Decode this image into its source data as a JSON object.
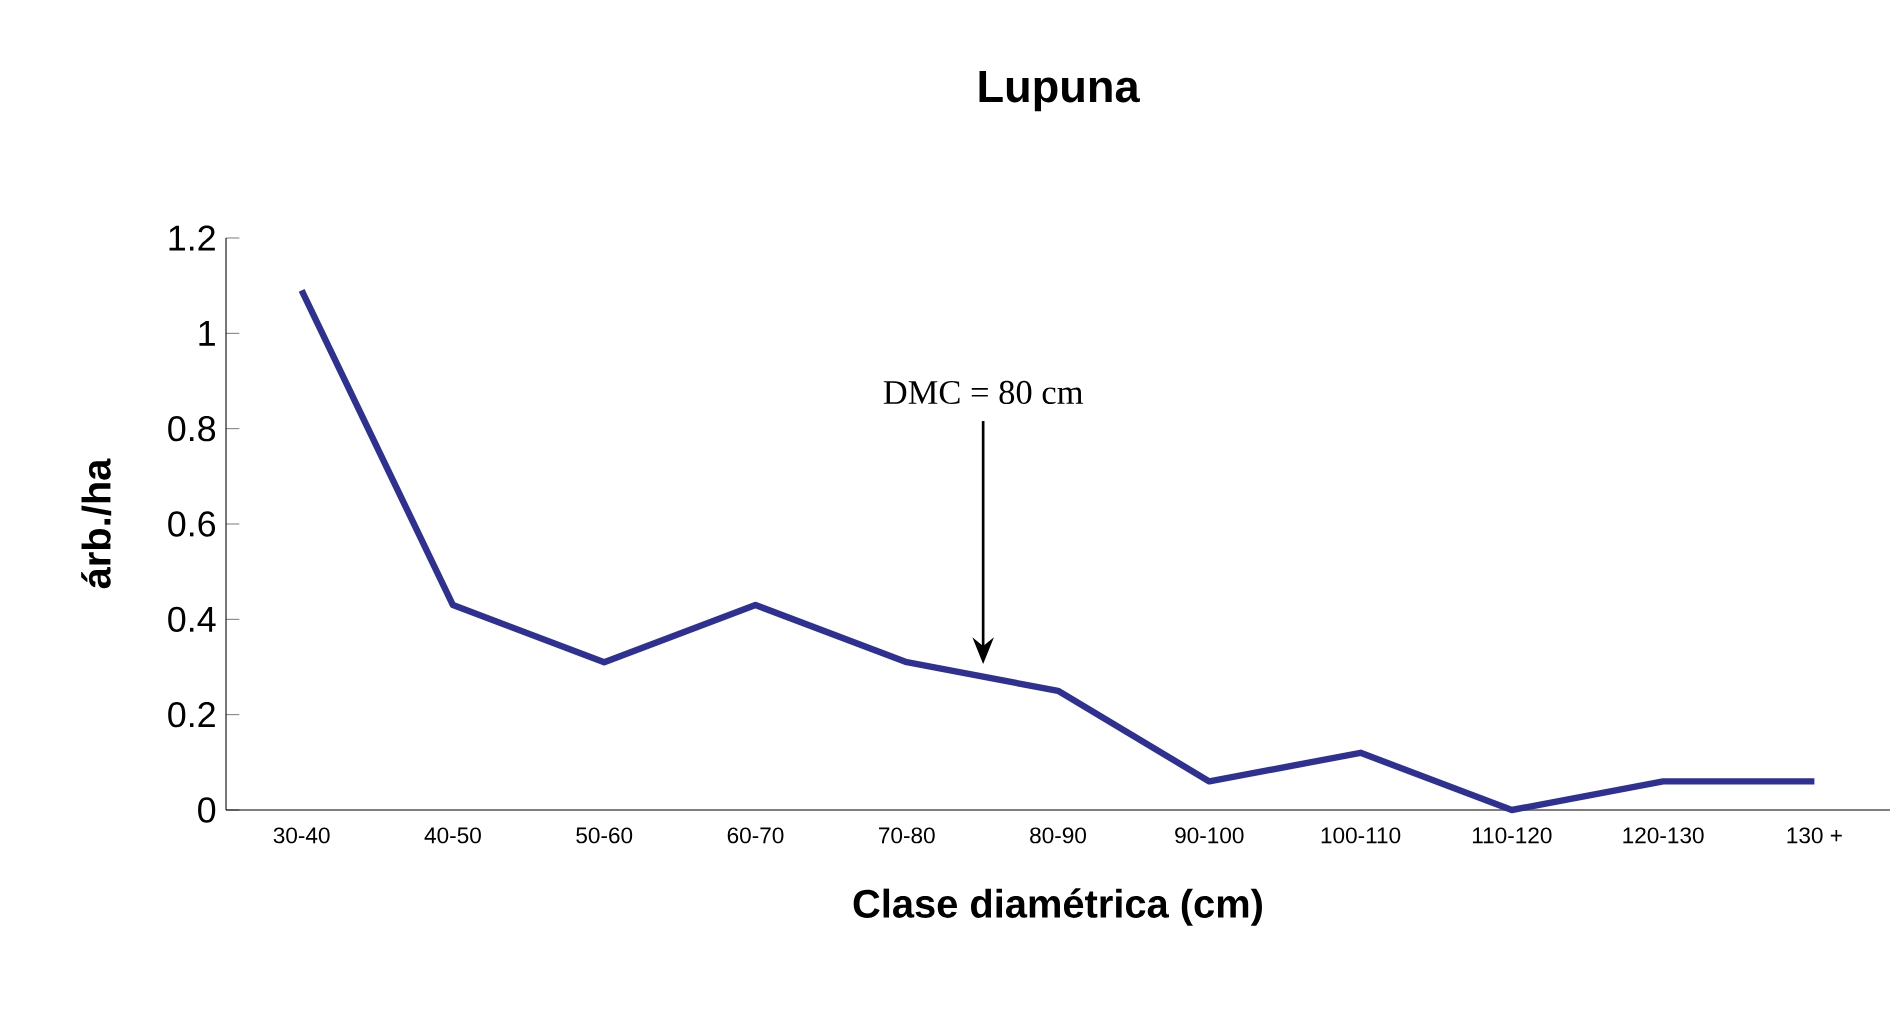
{
  "chart_data": {
    "type": "line",
    "title": "Lupuna",
    "xlabel": "Clase diamétrica (cm)",
    "ylabel": "árb./ha",
    "categories": [
      "30-40",
      "40-50",
      "50-60",
      "60-70",
      "70-80",
      "80-90",
      "90-100",
      "100-110",
      "110-120",
      "120-130",
      "130 +"
    ],
    "values": [
      1.09,
      0.43,
      0.31,
      0.43,
      0.31,
      0.25,
      0.06,
      0.12,
      0.0,
      0.06,
      0.06
    ],
    "color": "#2e3192",
    "ylim": [
      0,
      1.2
    ],
    "yticks": [
      0,
      0.2,
      0.4,
      0.6,
      0.8,
      1,
      1.2
    ],
    "annotations": [
      "DMC = 80 cm"
    ]
  }
}
